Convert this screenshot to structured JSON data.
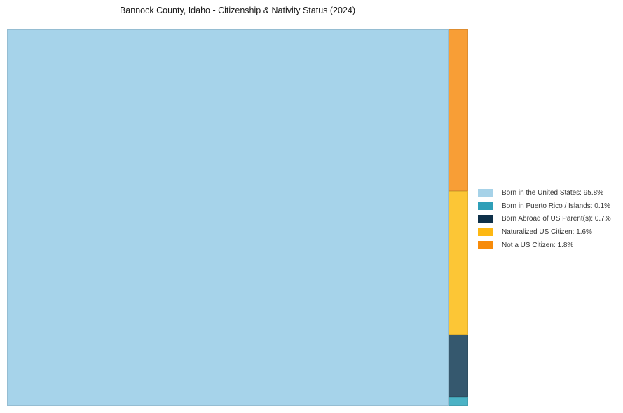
{
  "title": "Bannock County, Idaho - Citizenship & Nativity Status (2024)",
  "chart_data": {
    "type": "treemap",
    "title": "Bannock County, Idaho - Citizenship & Nativity Status (2024)",
    "legend_position": "right-center",
    "grid": false,
    "segments": [
      {
        "key": "born-in-us",
        "label": "Born in the United States",
        "value_pct": 95.8,
        "fill": "#a6d3ea",
        "legend_color": "#a6d2e8",
        "legend_text": "Born in the United States: 95.8%"
      },
      {
        "key": "born-in-pr",
        "label": "Born in Puerto Rico / Islands",
        "value_pct": 0.1,
        "fill": "#4bb2c5",
        "legend_color": "#2f9fb8",
        "legend_text": "Born in Puerto Rico / Islands: 0.1%"
      },
      {
        "key": "born-abroad",
        "label": "Born Abroad of US Parent(s)",
        "value_pct": 0.7,
        "fill": "#35586e",
        "legend_color": "#0e3049",
        "legend_text": "Born Abroad of US Parent(s): 0.7%"
      },
      {
        "key": "naturalized",
        "label": "Naturalized US Citizen",
        "value_pct": 1.6,
        "fill": "#fcc636",
        "legend_color": "#fdb813",
        "legend_text": "Naturalized US Citizen: 1.6%"
      },
      {
        "key": "not-citizen",
        "label": "Not a US Citizen",
        "value_pct": 1.8,
        "fill": "#f89e36",
        "legend_color": "#f78b0a",
        "legend_text": "Not a US Citizen: 1.8%"
      }
    ],
    "main_segment_key": "born-in-us",
    "right_column_order_top_to_bottom": [
      "not-citizen",
      "naturalized",
      "born-abroad",
      "born-in-pr"
    ]
  }
}
